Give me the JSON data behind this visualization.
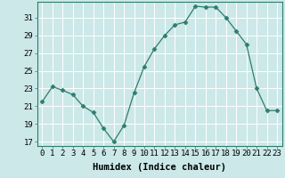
{
  "x": [
    0,
    1,
    2,
    3,
    4,
    5,
    6,
    7,
    8,
    9,
    10,
    11,
    12,
    13,
    14,
    15,
    16,
    17,
    18,
    19,
    20,
    21,
    22,
    23
  ],
  "y": [
    21.5,
    23.2,
    22.8,
    22.3,
    21.0,
    20.3,
    18.5,
    17.0,
    18.8,
    22.5,
    25.5,
    27.5,
    29.0,
    30.2,
    30.5,
    32.3,
    32.2,
    32.2,
    31.0,
    29.5,
    28.0,
    23.0,
    20.5,
    20.5
  ],
  "line_color": "#2e7d6e",
  "marker": "D",
  "marker_size": 2.5,
  "bg_color": "#cce8e8",
  "grid_color": "#aacccc",
  "xlabel": "Humidex (Indice chaleur)",
  "ylabel_ticks": [
    17,
    19,
    21,
    23,
    25,
    27,
    29,
    31
  ],
  "xlim": [
    -0.5,
    23.5
  ],
  "ylim": [
    16.5,
    32.8
  ],
  "xtick_labels": [
    "0",
    "1",
    "2",
    "3",
    "4",
    "5",
    "6",
    "7",
    "8",
    "9",
    "10",
    "11",
    "12",
    "13",
    "14",
    "15",
    "16",
    "17",
    "18",
    "19",
    "20",
    "21",
    "22",
    "23"
  ],
  "axis_fontsize": 7,
  "tick_fontsize": 6.5,
  "xlabel_fontsize": 7.5
}
